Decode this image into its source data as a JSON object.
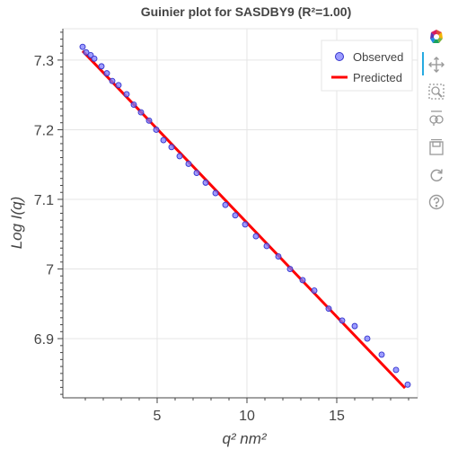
{
  "chart_data": {
    "type": "scatter",
    "title": "Guinier plot for SASDBY9 (R²=1.00)",
    "xlabel": "q² nm²",
    "ylabel": "Log I(q)",
    "xlim": [
      -0.25,
      19.5
    ],
    "ylim": [
      6.815,
      7.345
    ],
    "xticks": [
      5,
      10,
      15
    ],
    "xtick_labels": [
      "5",
      "10",
      "15"
    ],
    "yticks": [
      6.9,
      7.0,
      7.1,
      7.2,
      7.3
    ],
    "ytick_labels": [
      "6.9",
      "7",
      "7.1",
      "7.2",
      "7.3"
    ],
    "grid": true,
    "legend_position": "top-right",
    "series": [
      {
        "name": "Observed",
        "kind": "scatter",
        "color": "#7b7bff",
        "x": [
          0.85,
          1.05,
          1.3,
          1.5,
          1.9,
          2.2,
          2.5,
          2.85,
          3.3,
          3.7,
          4.1,
          4.55,
          4.95,
          5.35,
          5.8,
          6.25,
          6.75,
          7.2,
          7.7,
          8.25,
          8.8,
          9.35,
          9.9,
          10.5,
          11.1,
          11.75,
          12.4,
          13.1,
          13.75,
          14.55,
          15.3,
          16.0,
          16.7,
          17.5,
          18.3,
          18.95
        ],
        "y": [
          7.319,
          7.311,
          7.307,
          7.302,
          7.291,
          7.281,
          7.27,
          7.264,
          7.251,
          7.236,
          7.225,
          7.213,
          7.2,
          7.185,
          7.175,
          7.162,
          7.151,
          7.138,
          7.124,
          7.109,
          7.092,
          7.077,
          7.064,
          7.047,
          7.033,
          7.018,
          7.0,
          6.984,
          6.969,
          6.943,
          6.926,
          6.918,
          6.9,
          6.877,
          6.855,
          6.834
        ]
      },
      {
        "name": "Predicted",
        "kind": "line",
        "color": "#ff0000",
        "x": [
          0.85,
          18.8
        ],
        "y": [
          7.313,
          6.829
        ]
      }
    ]
  },
  "toolbar": {
    "tools": [
      {
        "name": "bokeh-logo-icon"
      },
      {
        "name": "pan-icon"
      },
      {
        "name": "box-zoom-icon"
      },
      {
        "name": "wheel-zoom-icon"
      },
      {
        "name": "save-icon"
      },
      {
        "name": "reset-icon"
      },
      {
        "name": "help-icon"
      }
    ]
  }
}
